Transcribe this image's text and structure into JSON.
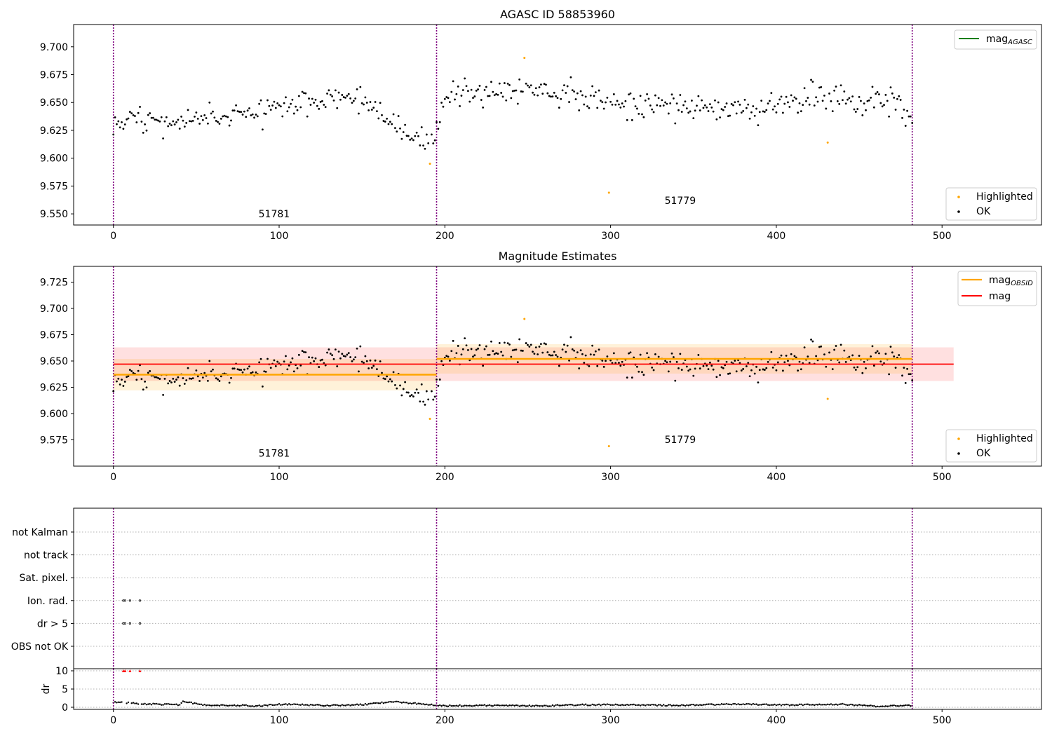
{
  "figure": {
    "background": "#ffffff",
    "colors": {
      "ok": "#000000",
      "highlighted": "#ffa500",
      "obsid_mag": "#ffa500",
      "mag": "#ff0000",
      "mag_agasc": "#008000",
      "boundary": "#800080",
      "flag_marker": "#ff0000"
    }
  },
  "chart_data": [
    {
      "id": "agasc",
      "type": "scatter",
      "title": "AGASC ID 58853960",
      "xlim": [
        -24,
        560
      ],
      "ylim": [
        9.54,
        9.72
      ],
      "xticks": [
        0,
        100,
        200,
        300,
        400,
        500
      ],
      "yticks": [
        9.55,
        9.575,
        9.6,
        9.625,
        9.65,
        9.675,
        9.7
      ],
      "ytick_labels": [
        "9.550",
        "9.575",
        "9.600",
        "9.625",
        "9.650",
        "9.675",
        "9.700"
      ],
      "grid": false,
      "obs_boundaries": [
        0,
        195,
        482
      ],
      "obsid_labels": [
        {
          "x": 97,
          "y": 9.547,
          "text": "51781"
        },
        {
          "x": 342,
          "y": 9.559,
          "text": "51779"
        }
      ],
      "series_meta": [
        {
          "name": "Highlighted",
          "color": "#ffa500",
          "marker": "dot"
        },
        {
          "name": "OK",
          "color": "#000000",
          "marker": "dot"
        }
      ],
      "highlighted_points": [
        [
          191,
          9.595
        ],
        [
          248,
          9.69
        ],
        [
          299,
          9.569
        ],
        [
          431,
          9.614
        ]
      ],
      "legend_upper": {
        "placement": "top-right",
        "entries": [
          {
            "name": "magAGASC",
            "base": "mag",
            "sub": "AGASC",
            "color": "#008000",
            "kind": "line"
          }
        ]
      },
      "legend_lower": {
        "placement": "bottom-right",
        "entries": [
          {
            "name": "Highlighted",
            "color": "#ffa500",
            "kind": "dot"
          },
          {
            "name": "OK",
            "color": "#000000",
            "kind": "dot"
          }
        ]
      }
    },
    {
      "id": "estimates",
      "type": "scatter",
      "title": "Magnitude Estimates",
      "xlim": [
        -24,
        560
      ],
      "ylim": [
        9.55,
        9.74
      ],
      "xticks": [
        0,
        100,
        200,
        300,
        400,
        500
      ],
      "yticks": [
        9.575,
        9.6,
        9.625,
        9.65,
        9.675,
        9.7,
        9.725
      ],
      "ytick_labels": [
        "9.575",
        "9.600",
        "9.625",
        "9.650",
        "9.675",
        "9.700",
        "9.725"
      ],
      "grid": false,
      "obs_boundaries": [
        0,
        195,
        482
      ],
      "obsid_labels": [
        {
          "x": 97,
          "y": 9.559,
          "text": "51781"
        },
        {
          "x": 342,
          "y": 9.572,
          "text": "51779"
        }
      ],
      "series_meta": [
        {
          "name": "Highlighted",
          "color": "#ffa500",
          "marker": "dot"
        },
        {
          "name": "OK",
          "color": "#000000",
          "marker": "dot"
        }
      ],
      "highlighted_points": [
        [
          191,
          9.595
        ],
        [
          248,
          9.69
        ],
        [
          299,
          9.569
        ],
        [
          431,
          9.614
        ]
      ],
      "mag_overall": {
        "value": 9.647,
        "band": [
          9.631,
          9.663
        ],
        "x_range": [
          0,
          507
        ],
        "color": "#ff0000"
      },
      "obsid_mags": [
        {
          "value": 9.637,
          "band": [
            9.622,
            9.652
          ],
          "x_range": [
            0,
            195
          ],
          "color": "#ffa500"
        },
        {
          "value": 9.652,
          "band": [
            9.638,
            9.666
          ],
          "x_range": [
            195,
            482
          ],
          "color": "#ffa500"
        }
      ],
      "legend_upper": {
        "placement": "top-right",
        "entries": [
          {
            "name": "magOBSID",
            "base": "mag",
            "sub": "OBSID",
            "color": "#ffa500",
            "kind": "line"
          },
          {
            "name": "mag",
            "base": "mag",
            "sub": "",
            "color": "#ff0000",
            "kind": "line"
          }
        ]
      },
      "legend_lower": {
        "placement": "bottom-right",
        "entries": [
          {
            "name": "Highlighted",
            "color": "#ffa500",
            "kind": "dot"
          },
          {
            "name": "OK",
            "color": "#000000",
            "kind": "dot"
          }
        ]
      }
    },
    {
      "id": "flags",
      "type": "scatter",
      "title": "",
      "xlim": [
        -24,
        560
      ],
      "xticks": [
        0,
        100,
        200,
        300,
        400,
        500
      ],
      "obs_boundaries": [
        0,
        195,
        482
      ],
      "categories": [
        "not Kalman",
        "not track",
        "Sat. pixel.",
        "Ion. rad.",
        "dr > 5",
        "OBS not OK"
      ],
      "flagged_points": {
        "Ion. rad.": [
          6,
          7,
          10,
          16
        ],
        "dr > 5": [
          6,
          7,
          10,
          16
        ]
      },
      "grid": "horizontal dotted"
    },
    {
      "id": "dr",
      "type": "scatter",
      "title": "",
      "ylabel": "dr",
      "xlim": [
        -24,
        560
      ],
      "ylim": [
        0,
        10
      ],
      "yticks": [
        0,
        5,
        10
      ],
      "ytick_labels": [
        "0",
        "5",
        "10"
      ],
      "xticks": [
        0,
        100,
        200,
        300,
        400,
        500
      ],
      "xtick_labels": [
        "0",
        "100",
        "200",
        "300",
        "400",
        "500"
      ],
      "obs_boundaries": [
        0,
        195,
        482
      ],
      "capped_points": [
        6,
        7,
        10,
        16
      ],
      "cap_value": 10,
      "dr_profile_knots": [
        [
          0,
          1.4
        ],
        [
          20,
          0.9
        ],
        [
          40,
          0.7
        ],
        [
          42,
          1.6
        ],
        [
          55,
          0.6
        ],
        [
          80,
          0.5
        ],
        [
          82,
          0.2
        ],
        [
          100,
          0.8
        ],
        [
          130,
          0.5
        ],
        [
          150,
          0.7
        ],
        [
          168,
          1.5
        ],
        [
          190,
          0.8
        ],
        [
          200,
          0.4
        ],
        [
          220,
          0.5
        ],
        [
          265,
          0.4
        ],
        [
          270,
          0.6
        ],
        [
          300,
          0.7
        ],
        [
          340,
          0.5
        ],
        [
          380,
          0.9
        ],
        [
          400,
          0.6
        ],
        [
          440,
          0.8
        ],
        [
          460,
          0.3
        ],
        [
          482,
          0.5
        ]
      ]
    }
  ]
}
